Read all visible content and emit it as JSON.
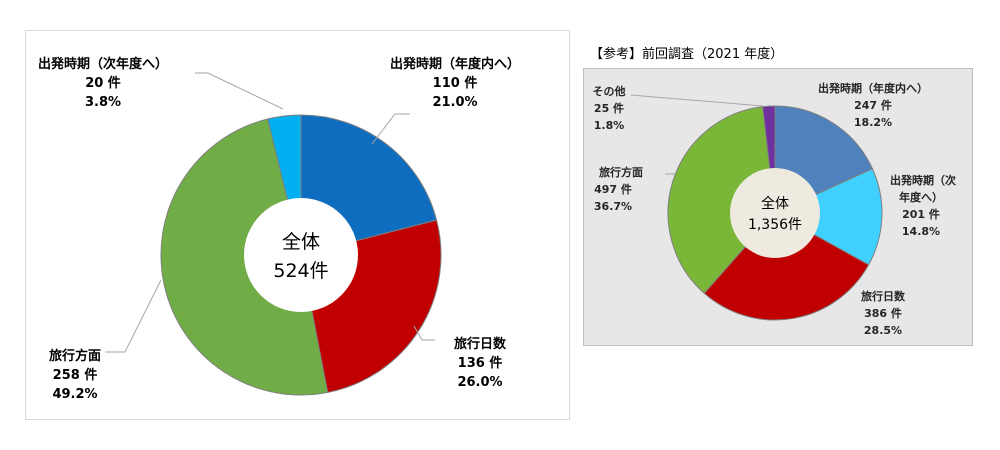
{
  "chart_data": [
    {
      "type": "pie",
      "title": "",
      "center_label": {
        "line1": "全体",
        "line2": "524件"
      },
      "slices": [
        {
          "name": "出発時期（年度内へ）",
          "count_label": "110 件",
          "pct_label": "21.0%",
          "value": 110,
          "percent": 21.0,
          "color": "#0f6dc0"
        },
        {
          "name": "旅行日数",
          "count_label": "136 件",
          "pct_label": "26.0%",
          "value": 136,
          "percent": 26.0,
          "color": "#c00000"
        },
        {
          "name": "旅行方面",
          "count_label": "258 件",
          "pct_label": "49.2%",
          "value": 258,
          "percent": 49.2,
          "color": "#70ad47"
        },
        {
          "name": "出発時期（次年度へ）",
          "count_label": "20 件",
          "pct_label": "3.8%",
          "value": 20,
          "percent": 3.8,
          "color": "#00b0f0"
        }
      ]
    },
    {
      "type": "pie",
      "title": "【参考】前回調査（2021 年度）",
      "center_label": {
        "line1": "全体",
        "line2": "1,356件"
      },
      "slices": [
        {
          "name": "出発時期（年度内へ）",
          "count_label": "247 件",
          "pct_label": "18.2%",
          "value": 247,
          "percent": 18.2,
          "color": "#4f81bd"
        },
        {
          "name": "出発時期（次年度へ）",
          "name_line1": "出発時期（次",
          "name_line2": "年度へ）",
          "count_label": "201 件",
          "pct_label": "14.8%",
          "value": 201,
          "percent": 14.8,
          "color": "#3fd0ff"
        },
        {
          "name": "旅行日数",
          "count_label": "386 件",
          "pct_label": "28.5%",
          "value": 386,
          "percent": 28.5,
          "color": "#c00000"
        },
        {
          "name": "旅行方面",
          "count_label": "497 件",
          "pct_label": "36.7%",
          "value": 497,
          "percent": 36.7,
          "color": "#7ab738"
        },
        {
          "name": "その他",
          "count_label": "25 件",
          "pct_label": "1.8%",
          "value": 25,
          "percent": 1.8,
          "color": "#7030a0"
        }
      ]
    }
  ]
}
